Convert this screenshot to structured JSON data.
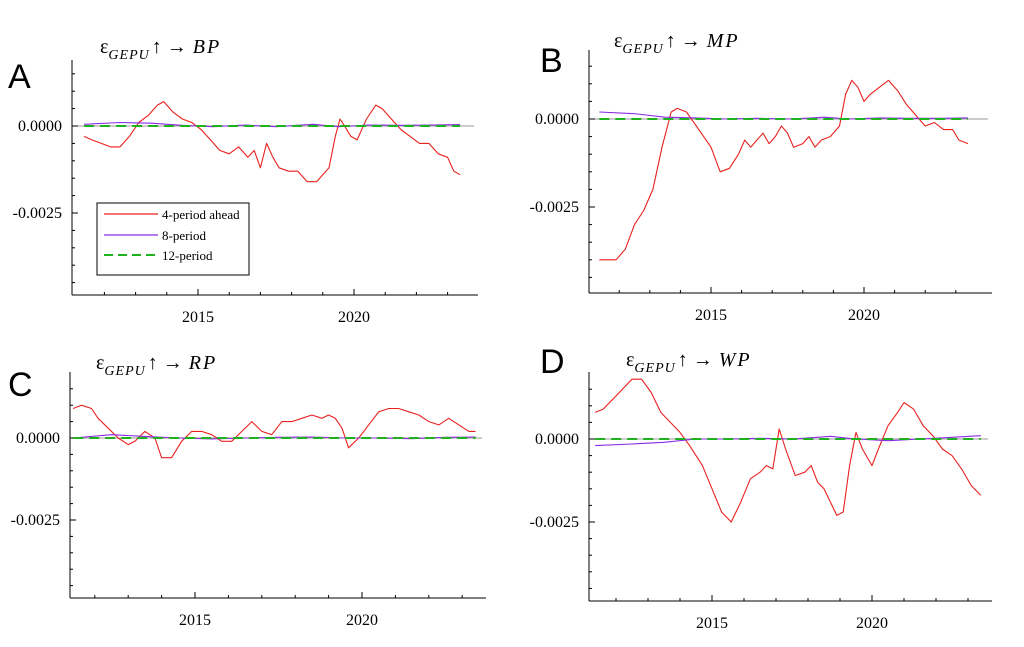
{
  "colors": {
    "four_period": "#e8211f",
    "eight_period": "#8a2be2",
    "twelve_period": "#1fb21f",
    "axis": "#000000",
    "zero_line": "#9a9a9a"
  },
  "legend": {
    "placement": "inside panel A, lower-left",
    "items": [
      {
        "label": "4-period ahead",
        "color": "#e8211f",
        "style": "solid"
      },
      {
        "label": "8-period",
        "color": "#8a2be2",
        "style": "solid"
      },
      {
        "label": "12-period",
        "color": "#1fb21f",
        "style": "dashed"
      }
    ]
  },
  "chart_data": [
    {
      "type": "line",
      "panel": "A",
      "title": {
        "epsilon": "ε",
        "sub": "GEPU",
        "arrow": "↑ →",
        "target": "BP"
      },
      "xlim": [
        2011.2,
        2023.8
      ],
      "ylim": [
        -0.005,
        0.0017
      ],
      "xticks": [
        2015,
        2020
      ],
      "xtick_labels": [
        "2015",
        "2020"
      ],
      "yticks": [
        0.0,
        -0.0025
      ],
      "ytick_labels": [
        "0.0000",
        "-0.0025"
      ],
      "series": [
        {
          "name": "4-period ahead",
          "x": [
            2011.35,
            2011.6,
            2011.9,
            2012.2,
            2012.5,
            2012.8,
            2013.1,
            2013.4,
            2013.7,
            2013.9,
            2014.2,
            2014.5,
            2014.8,
            2015.1,
            2015.4,
            2015.7,
            2016.0,
            2016.3,
            2016.6,
            2016.8,
            2017.0,
            2017.2,
            2017.4,
            2017.6,
            2017.9,
            2018.2,
            2018.5,
            2018.8,
            2019.0,
            2019.2,
            2019.4,
            2019.55,
            2019.7,
            2019.9,
            2020.1,
            2020.4,
            2020.7,
            2020.9,
            2021.2,
            2021.5,
            2021.8,
            2022.1,
            2022.4,
            2022.7,
            2023.0,
            2023.2,
            2023.4
          ],
          "y": [
            -0.0003,
            -0.0004,
            -0.0005,
            -0.0006,
            -0.0006,
            -0.0003,
            0.0001,
            0.0003,
            0.0006,
            0.0007,
            0.0004,
            0.0002,
            0.0001,
            -0.0001,
            -0.0004,
            -0.0007,
            -0.0008,
            -0.0006,
            -0.0009,
            -0.0007,
            -0.0012,
            -0.0005,
            -0.0009,
            -0.0012,
            -0.0013,
            -0.0013,
            -0.0016,
            -0.0016,
            -0.0014,
            -0.0012,
            -0.0003,
            0.0002,
            0.0,
            -0.0003,
            -0.0004,
            0.0002,
            0.0006,
            0.0005,
            0.0002,
            -0.0001,
            -0.0003,
            -0.0005,
            -0.0005,
            -0.0008,
            -0.0009,
            -0.0013,
            -0.0014
          ]
        },
        {
          "name": "8-period",
          "x": [
            2011.35,
            2012.5,
            2013.5,
            2014.5,
            2015.5,
            2016.5,
            2017.5,
            2018.3,
            2018.7,
            2019.5,
            2020.5,
            2021.5,
            2022.5,
            2023.4
          ],
          "y": [
            5e-05,
            0.0001,
            8e-05,
            2e-05,
            -2e-05,
            3e-05,
            -2e-05,
            3e-05,
            5e-05,
            -2e-05,
            3e-05,
            2e-05,
            3e-05,
            4e-05
          ]
        },
        {
          "name": "12-period",
          "x": [
            2011.35,
            2023.4
          ],
          "y": [
            0.0,
            0.0
          ]
        }
      ]
    },
    {
      "type": "line",
      "panel": "B",
      "title": {
        "epsilon": "ε",
        "sub": "GEPU",
        "arrow": "↑ →",
        "target": "MP"
      },
      "xlim": [
        2011.2,
        2023.8
      ],
      "ylim": [
        -0.005,
        0.002
      ],
      "xticks": [
        2015,
        2020
      ],
      "xtick_labels": [
        "2015",
        "2020"
      ],
      "yticks": [
        0.0,
        -0.0025
      ],
      "ytick_labels": [
        "0.0000",
        "-0.0025"
      ],
      "series": [
        {
          "name": "4-period ahead",
          "x": [
            2011.35,
            2011.6,
            2011.9,
            2012.2,
            2012.5,
            2012.8,
            2013.1,
            2013.4,
            2013.7,
            2013.9,
            2014.2,
            2014.6,
            2015.0,
            2015.3,
            2015.6,
            2015.9,
            2016.1,
            2016.3,
            2016.5,
            2016.7,
            2016.9,
            2017.1,
            2017.3,
            2017.5,
            2017.7,
            2018.0,
            2018.2,
            2018.4,
            2018.6,
            2018.9,
            2019.2,
            2019.4,
            2019.6,
            2019.8,
            2020.0,
            2020.2,
            2020.5,
            2020.8,
            2021.1,
            2021.4,
            2021.7,
            2022.0,
            2022.3,
            2022.6,
            2022.9,
            2023.1,
            2023.4
          ],
          "y": [
            -0.004,
            -0.004,
            -0.004,
            -0.0037,
            -0.003,
            -0.0026,
            -0.002,
            -0.0008,
            0.0002,
            0.0003,
            0.0002,
            -0.0003,
            -0.0008,
            -0.0015,
            -0.0014,
            -0.001,
            -0.0006,
            -0.0008,
            -0.0006,
            -0.0004,
            -0.0007,
            -0.0005,
            -0.0002,
            -0.0004,
            -0.0008,
            -0.0007,
            -0.0005,
            -0.0008,
            -0.0006,
            -0.0005,
            -0.0002,
            0.0007,
            0.0011,
            0.0009,
            0.0005,
            0.0007,
            0.0009,
            0.0011,
            0.0008,
            0.0004,
            0.0001,
            -0.0002,
            -0.0001,
            -0.0003,
            -0.0003,
            -0.0006,
            -0.0007
          ]
        },
        {
          "name": "8-period",
          "x": [
            2011.35,
            2012.5,
            2013.5,
            2014.5,
            2015.5,
            2016.5,
            2017.5,
            2018.3,
            2018.7,
            2019.5,
            2020.5,
            2021.5,
            2022.5,
            2023.4
          ],
          "y": [
            0.0002,
            0.00015,
            5e-05,
            3e-05,
            0.0,
            2e-05,
            0.0,
            3e-05,
            5e-05,
            0.0,
            3e-05,
            2e-05,
            2e-05,
            3e-05
          ]
        },
        {
          "name": "12-period",
          "x": [
            2011.35,
            2023.4
          ],
          "y": [
            0.0,
            0.0
          ]
        }
      ]
    },
    {
      "type": "line",
      "panel": "C",
      "title": {
        "epsilon": "ε",
        "sub": "GEPU",
        "arrow": "↑ →",
        "target": "RP"
      },
      "xlim": [
        2011.2,
        2023.8
      ],
      "ylim": [
        -0.005,
        0.002
      ],
      "xticks": [
        2015,
        2020
      ],
      "xtick_labels": [
        "2015",
        "2020"
      ],
      "yticks": [
        0.0,
        -0.0025
      ],
      "ytick_labels": [
        "0.0000",
        "-0.0025"
      ],
      "series": [
        {
          "name": "4-period ahead",
          "x": [
            2011.35,
            2011.6,
            2011.9,
            2012.1,
            2012.4,
            2012.7,
            2013.0,
            2013.2,
            2013.5,
            2013.8,
            2014.0,
            2014.3,
            2014.6,
            2014.9,
            2015.2,
            2015.5,
            2015.8,
            2016.1,
            2016.4,
            2016.7,
            2017.0,
            2017.3,
            2017.6,
            2017.9,
            2018.2,
            2018.5,
            2018.8,
            2019.0,
            2019.2,
            2019.4,
            2019.6,
            2019.9,
            2020.2,
            2020.5,
            2020.8,
            2021.1,
            2021.4,
            2021.7,
            2022.0,
            2022.3,
            2022.6,
            2022.9,
            2023.2,
            2023.4
          ],
          "y": [
            0.0009,
            0.001,
            0.0009,
            0.0006,
            0.0003,
            0.0,
            -0.0002,
            -0.0001,
            0.0002,
            0.0,
            -0.0006,
            -0.0006,
            -0.0001,
            0.0002,
            0.0002,
            0.0001,
            -0.0001,
            -0.0001,
            0.0002,
            0.0005,
            0.0002,
            0.0001,
            0.0005,
            0.0005,
            0.0006,
            0.0007,
            0.0006,
            0.0007,
            0.0006,
            0.0003,
            -0.0003,
            0.0,
            0.0004,
            0.0008,
            0.0009,
            0.0009,
            0.0008,
            0.0007,
            0.0005,
            0.0004,
            0.0006,
            0.0004,
            0.0002,
            0.0002
          ]
        },
        {
          "name": "8-period",
          "x": [
            2011.35,
            2012.5,
            2013.5,
            2014.5,
            2015.5,
            2016.5,
            2017.5,
            2018.5,
            2019.5,
            2020.5,
            2021.5,
            2022.5,
            2023.4
          ],
          "y": [
            0.0,
            0.0001,
            5e-05,
            0.0,
            -3e-05,
            0.0,
            2e-05,
            3e-05,
            0.0,
            0.0,
            -2e-05,
            2e-05,
            3e-05
          ]
        },
        {
          "name": "12-period",
          "x": [
            2011.35,
            2023.4
          ],
          "y": [
            0.0,
            0.0
          ]
        }
      ]
    },
    {
      "type": "line",
      "panel": "D",
      "title": {
        "epsilon": "ε",
        "sub": "GEPU",
        "arrow": "↑ →",
        "target": "WP"
      },
      "xlim": [
        2011.2,
        2023.8
      ],
      "ylim": [
        -0.005,
        0.002
      ],
      "xticks": [
        2015,
        2020
      ],
      "xtick_labels": [
        "2015",
        "2020"
      ],
      "yticks": [
        0.0,
        -0.0025
      ],
      "ytick_labels": [
        "0.0000",
        "-0.0025"
      ],
      "series": [
        {
          "name": "4-period ahead",
          "x": [
            2011.35,
            2011.6,
            2011.9,
            2012.2,
            2012.5,
            2012.8,
            2013.1,
            2013.4,
            2013.7,
            2014.0,
            2014.3,
            2014.7,
            2015.0,
            2015.3,
            2015.6,
            2015.9,
            2016.2,
            2016.5,
            2016.7,
            2016.9,
            2017.1,
            2017.3,
            2017.6,
            2017.9,
            2018.1,
            2018.3,
            2018.5,
            2018.7,
            2018.9,
            2019.1,
            2019.3,
            2019.5,
            2019.7,
            2020.0,
            2020.2,
            2020.5,
            2020.8,
            2021.0,
            2021.3,
            2021.6,
            2021.9,
            2022.2,
            2022.5,
            2022.8,
            2023.1,
            2023.4
          ],
          "y": [
            0.0008,
            0.0009,
            0.0012,
            0.0015,
            0.0018,
            0.0018,
            0.0014,
            0.0008,
            0.0005,
            0.0002,
            -0.0002,
            -0.0008,
            -0.0015,
            -0.0022,
            -0.0025,
            -0.0019,
            -0.0012,
            -0.001,
            -0.0008,
            -0.0009,
            0.0003,
            -0.0003,
            -0.0011,
            -0.001,
            -0.0008,
            -0.0013,
            -0.0015,
            -0.0019,
            -0.0023,
            -0.0022,
            -0.0008,
            0.0002,
            -0.0003,
            -0.0008,
            -0.0003,
            0.0004,
            0.0008,
            0.0011,
            0.0009,
            0.0004,
            0.0001,
            -0.0003,
            -0.0005,
            -0.0009,
            -0.0014,
            -0.0017
          ]
        },
        {
          "name": "8-period",
          "x": [
            2011.35,
            2012.5,
            2013.5,
            2014.5,
            2015.5,
            2016.5,
            2017.5,
            2018.3,
            2018.7,
            2019.5,
            2020.5,
            2021.5,
            2022.5,
            2023.4
          ],
          "y": [
            -0.0002,
            -0.00015,
            -0.0001,
            0.0,
            0.0,
            2e-05,
            0.0,
            5e-05,
            8e-05,
            0.0,
            -5e-05,
            0.0,
            5e-05,
            0.0001
          ]
        },
        {
          "name": "12-period",
          "x": [
            2011.35,
            2023.4
          ],
          "y": [
            0.0,
            0.0
          ]
        }
      ]
    }
  ]
}
